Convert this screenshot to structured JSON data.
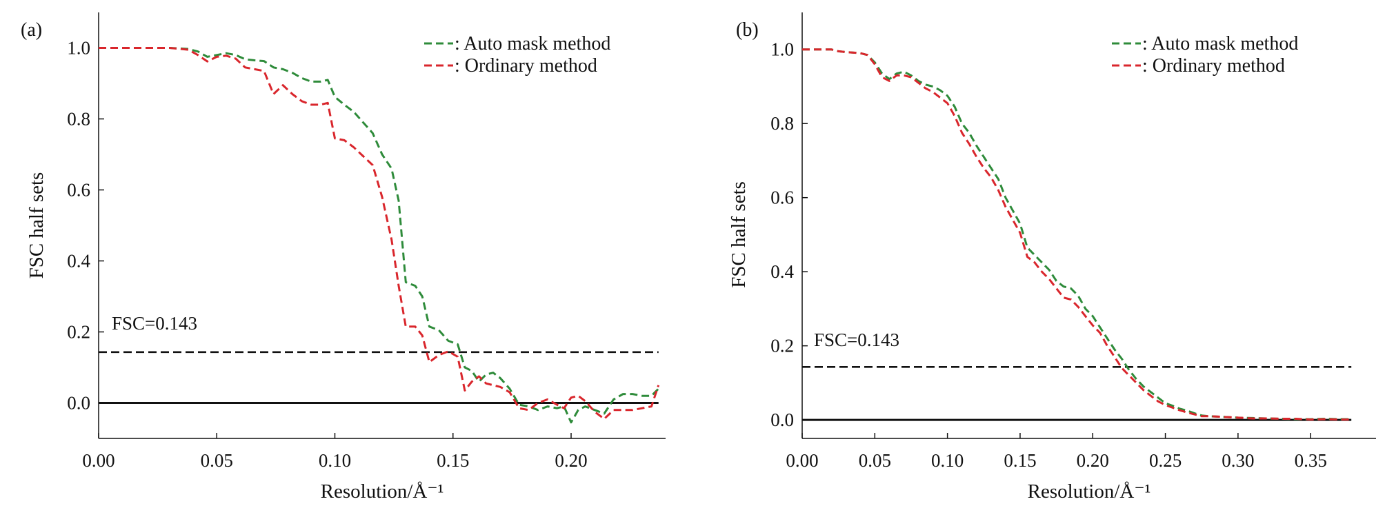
{
  "legend_labels": {
    "auto": ": Auto mask method",
    "ordinary": ": Ordinary method"
  },
  "colors": {
    "auto": "#2e8b3a",
    "ordinary": "#d9262c",
    "threshold": "#111111",
    "axis": "#111111"
  },
  "chart_data": [
    {
      "type": "line",
      "panel_label": "(a)",
      "xlabel": "Resolution/Å⁻¹",
      "ylabel": "FSC half sets",
      "xlim": [
        0,
        0.24
      ],
      "ylim": [
        -0.1,
        1.1
      ],
      "xticks": [
        "0.00",
        "0.05",
        "0.10",
        "0.15",
        "0.20"
      ],
      "yticks": [
        "0.0",
        "0.2",
        "0.4",
        "0.6",
        "0.8",
        "1.0"
      ],
      "grid": false,
      "legend_position": "top-right",
      "threshold": {
        "value": 0.143,
        "label": "FSC=0.143"
      },
      "series": [
        {
          "name": ": Auto mask method",
          "key": "auto",
          "style": "dashed",
          "points": [
            [
              0.0,
              1.0
            ],
            [
              0.01,
              1.0
            ],
            [
              0.02,
              1.0
            ],
            [
              0.03,
              1.0
            ],
            [
              0.038,
              0.997
            ],
            [
              0.042,
              0.99
            ],
            [
              0.046,
              0.975
            ],
            [
              0.05,
              0.98
            ],
            [
              0.054,
              0.985
            ],
            [
              0.058,
              0.98
            ],
            [
              0.062,
              0.968
            ],
            [
              0.066,
              0.965
            ],
            [
              0.07,
              0.963
            ],
            [
              0.074,
              0.945
            ],
            [
              0.078,
              0.94
            ],
            [
              0.082,
              0.93
            ],
            [
              0.086,
              0.915
            ],
            [
              0.09,
              0.905
            ],
            [
              0.094,
              0.905
            ],
            [
              0.097,
              0.91
            ],
            [
              0.1,
              0.862
            ],
            [
              0.104,
              0.84
            ],
            [
              0.108,
              0.82
            ],
            [
              0.112,
              0.79
            ],
            [
              0.116,
              0.76
            ],
            [
              0.12,
              0.7
            ],
            [
              0.124,
              0.66
            ],
            [
              0.127,
              0.57
            ],
            [
              0.13,
              0.34
            ],
            [
              0.134,
              0.33
            ],
            [
              0.137,
              0.3
            ],
            [
              0.14,
              0.215
            ],
            [
              0.144,
              0.205
            ],
            [
              0.148,
              0.175
            ],
            [
              0.152,
              0.165
            ],
            [
              0.155,
              0.1
            ],
            [
              0.158,
              0.09
            ],
            [
              0.161,
              0.06
            ],
            [
              0.164,
              0.08
            ],
            [
              0.167,
              0.085
            ],
            [
              0.17,
              0.07
            ],
            [
              0.174,
              0.04
            ],
            [
              0.178,
              -0.005
            ],
            [
              0.182,
              -0.01
            ],
            [
              0.186,
              -0.02
            ],
            [
              0.19,
              -0.01
            ],
            [
              0.194,
              -0.015
            ],
            [
              0.197,
              -0.01
            ],
            [
              0.2,
              -0.055
            ],
            [
              0.203,
              -0.02
            ],
            [
              0.206,
              -0.01
            ],
            [
              0.21,
              -0.02
            ],
            [
              0.214,
              -0.03
            ],
            [
              0.218,
              0.01
            ],
            [
              0.222,
              0.025
            ],
            [
              0.226,
              0.025
            ],
            [
              0.23,
              0.02
            ],
            [
              0.234,
              0.02
            ],
            [
              0.237,
              0.04
            ]
          ]
        },
        {
          "name": ": Ordinary method",
          "key": "ordinary",
          "style": "dashed",
          "points": [
            [
              0.0,
              1.0
            ],
            [
              0.01,
              1.0
            ],
            [
              0.02,
              1.0
            ],
            [
              0.03,
              1.0
            ],
            [
              0.038,
              0.995
            ],
            [
              0.042,
              0.98
            ],
            [
              0.046,
              0.962
            ],
            [
              0.05,
              0.975
            ],
            [
              0.054,
              0.978
            ],
            [
              0.058,
              0.97
            ],
            [
              0.062,
              0.945
            ],
            [
              0.066,
              0.94
            ],
            [
              0.07,
              0.935
            ],
            [
              0.074,
              0.87
            ],
            [
              0.078,
              0.895
            ],
            [
              0.082,
              0.87
            ],
            [
              0.086,
              0.85
            ],
            [
              0.09,
              0.84
            ],
            [
              0.094,
              0.84
            ],
            [
              0.097,
              0.845
            ],
            [
              0.1,
              0.745
            ],
            [
              0.104,
              0.74
            ],
            [
              0.108,
              0.72
            ],
            [
              0.112,
              0.695
            ],
            [
              0.116,
              0.67
            ],
            [
              0.12,
              0.58
            ],
            [
              0.124,
              0.46
            ],
            [
              0.127,
              0.33
            ],
            [
              0.13,
              0.215
            ],
            [
              0.134,
              0.215
            ],
            [
              0.137,
              0.19
            ],
            [
              0.14,
              0.115
            ],
            [
              0.144,
              0.135
            ],
            [
              0.148,
              0.145
            ],
            [
              0.152,
              0.13
            ],
            [
              0.155,
              0.035
            ],
            [
              0.158,
              0.06
            ],
            [
              0.161,
              0.075
            ],
            [
              0.164,
              0.055
            ],
            [
              0.167,
              0.05
            ],
            [
              0.17,
              0.045
            ],
            [
              0.174,
              0.03
            ],
            [
              0.178,
              -0.015
            ],
            [
              0.182,
              -0.02
            ],
            [
              0.186,
              0.0
            ],
            [
              0.19,
              0.01
            ],
            [
              0.194,
              -0.005
            ],
            [
              0.197,
              -0.015
            ],
            [
              0.2,
              0.015
            ],
            [
              0.203,
              0.02
            ],
            [
              0.206,
              0.005
            ],
            [
              0.21,
              -0.025
            ],
            [
              0.214,
              -0.045
            ],
            [
              0.218,
              -0.02
            ],
            [
              0.222,
              -0.02
            ],
            [
              0.226,
              -0.02
            ],
            [
              0.23,
              -0.015
            ],
            [
              0.234,
              -0.01
            ],
            [
              0.237,
              0.05
            ]
          ]
        }
      ]
    },
    {
      "type": "line",
      "panel_label": "(b)",
      "xlabel": "Resolution/Å⁻¹",
      "ylabel": "FSC half sets",
      "xlim": [
        0,
        0.395
      ],
      "ylim": [
        -0.05,
        1.1
      ],
      "xticks": [
        "0.00",
        "0.05",
        "0.10",
        "0.15",
        "0.20",
        "0.25",
        "0.30",
        "0.35"
      ],
      "yticks": [
        "0.0",
        "0.2",
        "0.4",
        "0.6",
        "0.8",
        "1.0"
      ],
      "grid": false,
      "legend_position": "top-right",
      "threshold": {
        "value": 0.143,
        "label": "FSC=0.143"
      },
      "series": [
        {
          "name": ": Auto mask method",
          "key": "auto",
          "style": "dashed",
          "points": [
            [
              0.0,
              1.0
            ],
            [
              0.01,
              1.0
            ],
            [
              0.02,
              1.0
            ],
            [
              0.025,
              0.995
            ],
            [
              0.03,
              0.993
            ],
            [
              0.04,
              0.99
            ],
            [
              0.045,
              0.985
            ],
            [
              0.05,
              0.965
            ],
            [
              0.055,
              0.935
            ],
            [
              0.06,
              0.92
            ],
            [
              0.065,
              0.935
            ],
            [
              0.07,
              0.94
            ],
            [
              0.075,
              0.93
            ],
            [
              0.08,
              0.915
            ],
            [
              0.085,
              0.905
            ],
            [
              0.09,
              0.9
            ],
            [
              0.095,
              0.89
            ],
            [
              0.1,
              0.875
            ],
            [
              0.105,
              0.845
            ],
            [
              0.11,
              0.8
            ],
            [
              0.115,
              0.775
            ],
            [
              0.12,
              0.74
            ],
            [
              0.125,
              0.71
            ],
            [
              0.13,
              0.68
            ],
            [
              0.135,
              0.65
            ],
            [
              0.14,
              0.6
            ],
            [
              0.145,
              0.565
            ],
            [
              0.15,
              0.53
            ],
            [
              0.155,
              0.465
            ],
            [
              0.16,
              0.445
            ],
            [
              0.165,
              0.425
            ],
            [
              0.17,
              0.405
            ],
            [
              0.175,
              0.375
            ],
            [
              0.18,
              0.36
            ],
            [
              0.185,
              0.355
            ],
            [
              0.19,
              0.335
            ],
            [
              0.195,
              0.3
            ],
            [
              0.2,
              0.28
            ],
            [
              0.205,
              0.25
            ],
            [
              0.21,
              0.22
            ],
            [
              0.215,
              0.19
            ],
            [
              0.22,
              0.165
            ],
            [
              0.225,
              0.135
            ],
            [
              0.23,
              0.11
            ],
            [
              0.235,
              0.09
            ],
            [
              0.24,
              0.075
            ],
            [
              0.245,
              0.06
            ],
            [
              0.25,
              0.045
            ],
            [
              0.255,
              0.038
            ],
            [
              0.26,
              0.03
            ],
            [
              0.265,
              0.025
            ],
            [
              0.27,
              0.018
            ],
            [
              0.275,
              0.012
            ],
            [
              0.28,
              0.01
            ],
            [
              0.29,
              0.008
            ],
            [
              0.3,
              0.006
            ],
            [
              0.31,
              0.005
            ],
            [
              0.32,
              0.004
            ],
            [
              0.33,
              0.003
            ],
            [
              0.34,
              0.002
            ],
            [
              0.35,
              0.002
            ],
            [
              0.36,
              0.003
            ],
            [
              0.37,
              0.002
            ],
            [
              0.378,
              0.002
            ]
          ]
        },
        {
          "name": ": Ordinary method",
          "key": "ordinary",
          "style": "dashed",
          "points": [
            [
              0.0,
              1.0
            ],
            [
              0.01,
              1.0
            ],
            [
              0.02,
              1.0
            ],
            [
              0.025,
              0.995
            ],
            [
              0.03,
              0.993
            ],
            [
              0.04,
              0.99
            ],
            [
              0.045,
              0.985
            ],
            [
              0.05,
              0.96
            ],
            [
              0.055,
              0.925
            ],
            [
              0.06,
              0.915
            ],
            [
              0.065,
              0.93
            ],
            [
              0.07,
              0.93
            ],
            [
              0.075,
              0.925
            ],
            [
              0.08,
              0.91
            ],
            [
              0.085,
              0.895
            ],
            [
              0.09,
              0.885
            ],
            [
              0.095,
              0.87
            ],
            [
              0.1,
              0.855
            ],
            [
              0.105,
              0.82
            ],
            [
              0.11,
              0.775
            ],
            [
              0.115,
              0.745
            ],
            [
              0.12,
              0.71
            ],
            [
              0.125,
              0.68
            ],
            [
              0.13,
              0.655
            ],
            [
              0.135,
              0.62
            ],
            [
              0.14,
              0.575
            ],
            [
              0.145,
              0.54
            ],
            [
              0.15,
              0.505
            ],
            [
              0.155,
              0.44
            ],
            [
              0.16,
              0.425
            ],
            [
              0.165,
              0.4
            ],
            [
              0.17,
              0.38
            ],
            [
              0.175,
              0.355
            ],
            [
              0.18,
              0.33
            ],
            [
              0.185,
              0.325
            ],
            [
              0.19,
              0.305
            ],
            [
              0.195,
              0.28
            ],
            [
              0.2,
              0.255
            ],
            [
              0.205,
              0.235
            ],
            [
              0.21,
              0.2
            ],
            [
              0.215,
              0.17
            ],
            [
              0.22,
              0.14
            ],
            [
              0.225,
              0.12
            ],
            [
              0.23,
              0.1
            ],
            [
              0.235,
              0.08
            ],
            [
              0.24,
              0.065
            ],
            [
              0.245,
              0.05
            ],
            [
              0.25,
              0.04
            ],
            [
              0.255,
              0.033
            ],
            [
              0.26,
              0.026
            ],
            [
              0.265,
              0.02
            ],
            [
              0.27,
              0.015
            ],
            [
              0.275,
              0.01
            ],
            [
              0.28,
              0.01
            ],
            [
              0.29,
              0.008
            ],
            [
              0.3,
              0.006
            ],
            [
              0.31,
              0.004
            ],
            [
              0.32,
              0.004
            ],
            [
              0.33,
              0.003
            ],
            [
              0.34,
              0.003
            ],
            [
              0.35,
              0.001
            ],
            [
              0.36,
              0.002
            ],
            [
              0.37,
              0.001
            ],
            [
              0.378,
              0.001
            ]
          ]
        }
      ]
    }
  ]
}
